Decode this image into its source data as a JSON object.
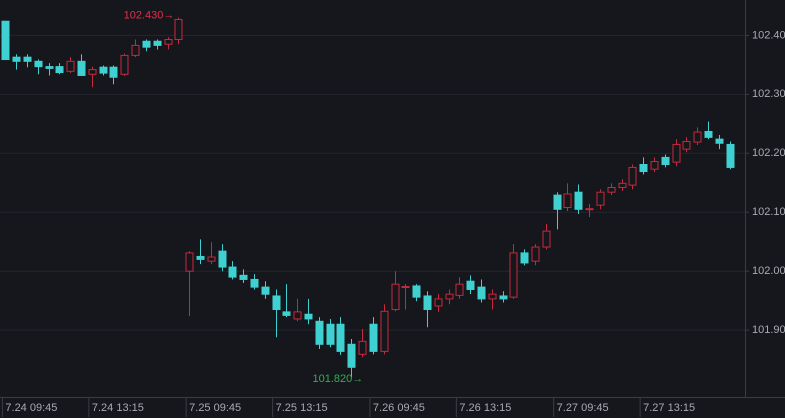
{
  "chart_data": {
    "type": "candlestick",
    "categories": [
      "7.24 09:45",
      null,
      null,
      null,
      null,
      null,
      null,
      null,
      "7.24 13:15",
      null,
      null,
      null,
      null,
      null,
      null,
      null,
      null,
      "7.25 09:45",
      null,
      null,
      null,
      null,
      null,
      null,
      null,
      "7.25 13:15",
      null,
      null,
      null,
      null,
      null,
      null,
      null,
      null,
      "7.26 09:45",
      null,
      null,
      null,
      null,
      null,
      null,
      null,
      "7.26 13:15",
      null,
      null,
      null,
      null,
      null,
      null,
      null,
      null,
      "7.27 09:45",
      null,
      null,
      null,
      null,
      null,
      null,
      null,
      "7.27 13:15",
      null,
      null,
      null,
      null,
      null,
      null,
      null,
      null
    ],
    "open": [
      102.424,
      102.363,
      102.363,
      102.356,
      102.347,
      102.347,
      102.339,
      102.356,
      102.334,
      102.346,
      102.346,
      102.334,
      102.366,
      102.39,
      102.39,
      102.385,
      102.393,
      102.0,
      102.025,
      102.017,
      102.034,
      102.007,
      101.993,
      101.986,
      101.973,
      101.958,
      101.931,
      101.919,
      101.927,
      101.915,
      101.91,
      101.91,
      101.876,
      101.859,
      101.91,
      101.864,
      101.935,
      101.973,
      101.975,
      101.958,
      101.941,
      101.953,
      101.959,
      101.983,
      101.973,
      101.953,
      101.958,
      101.956,
      102.031,
      102.017,
      102.041,
      102.129,
      102.108,
      102.134,
      102.105,
      102.112,
      102.134,
      102.142,
      102.146,
      102.181,
      102.173,
      102.193,
      102.185,
      102.207,
      102.219,
      102.237,
      102.224,
      102.215
    ],
    "high": [
      102.424,
      102.368,
      102.368,
      102.359,
      102.353,
      102.353,
      102.363,
      102.368,
      102.347,
      102.349,
      102.349,
      102.369,
      102.393,
      102.393,
      102.393,
      102.397,
      102.43,
      102.034,
      102.054,
      102.049,
      102.046,
      102.017,
      102.003,
      101.995,
      101.983,
      101.969,
      101.978,
      101.953,
      101.953,
      101.922,
      101.919,
      101.922,
      101.885,
      101.902,
      101.922,
      101.944,
      102.0,
      101.978,
      101.978,
      101.966,
      101.961,
      101.969,
      101.99,
      101.993,
      101.986,
      101.969,
      101.966,
      102.046,
      102.037,
      102.046,
      102.08,
      102.134,
      102.149,
      102.147,
      102.114,
      102.139,
      102.149,
      102.156,
      102.181,
      102.193,
      102.193,
      102.198,
      102.224,
      102.227,
      102.244,
      102.254,
      102.231,
      102.22
    ],
    "low": [
      102.359,
      102.342,
      102.346,
      102.334,
      102.332,
      102.334,
      102.336,
      102.331,
      102.312,
      102.332,
      102.317,
      102.331,
      102.363,
      102.373,
      102.376,
      102.376,
      102.385,
      101.924,
      102.012,
      102.012,
      102.0,
      101.986,
      101.98,
      101.969,
      101.953,
      101.888,
      101.922,
      101.915,
      101.91,
      101.868,
      101.871,
      101.858,
      101.82,
      101.854,
      101.859,
      101.859,
      101.932,
      101.935,
      101.949,
      101.905,
      101.931,
      101.944,
      101.953,
      101.961,
      101.947,
      101.935,
      101.947,
      101.953,
      102.01,
      102.01,
      102.037,
      102.071,
      102.102,
      102.097,
      102.092,
      102.105,
      102.129,
      102.136,
      102.139,
      102.164,
      102.168,
      102.176,
      102.178,
      102.202,
      102.214,
      102.224,
      102.207,
      102.173
    ],
    "close": [
      102.359,
      102.356,
      102.356,
      102.347,
      102.344,
      102.337,
      102.356,
      102.332,
      102.342,
      102.336,
      102.329,
      102.366,
      102.383,
      102.38,
      102.383,
      102.393,
      102.427,
      102.031,
      102.02,
      102.024,
      102.007,
      101.99,
      101.986,
      101.973,
      101.961,
      101.935,
      101.925,
      101.931,
      101.919,
      101.876,
      101.876,
      101.864,
      101.837,
      101.881,
      101.864,
      101.932,
      101.978,
      101.974,
      101.956,
      101.935,
      101.953,
      101.961,
      101.978,
      101.969,
      101.953,
      101.961,
      101.953,
      102.031,
      102.014,
      102.041,
      102.068,
      102.105,
      102.131,
      102.105,
      102.106,
      102.134,
      102.142,
      102.149,
      102.176,
      102.169,
      102.186,
      102.181,
      102.215,
      102.22,
      102.236,
      102.227,
      102.217,
      102.176
    ],
    "up_color": "#c8283c",
    "down_color": "#3fd1d1",
    "ylim": [
      101.79,
      102.46
    ],
    "yticks": [
      {
        "value": 101.9,
        "label": "101.90"
      },
      {
        "value": 102.0,
        "label": "102.00"
      },
      {
        "value": 102.1,
        "label": "102.10"
      },
      {
        "value": 102.2,
        "label": "102.20"
      },
      {
        "value": 102.3,
        "label": "102.30"
      },
      {
        "value": 102.4,
        "label": "102.40"
      }
    ],
    "grid": true,
    "high_label": "102.430→",
    "high_label_color": "#e0304a",
    "low_label": "101.820→",
    "low_label_color": "#2db34a"
  }
}
